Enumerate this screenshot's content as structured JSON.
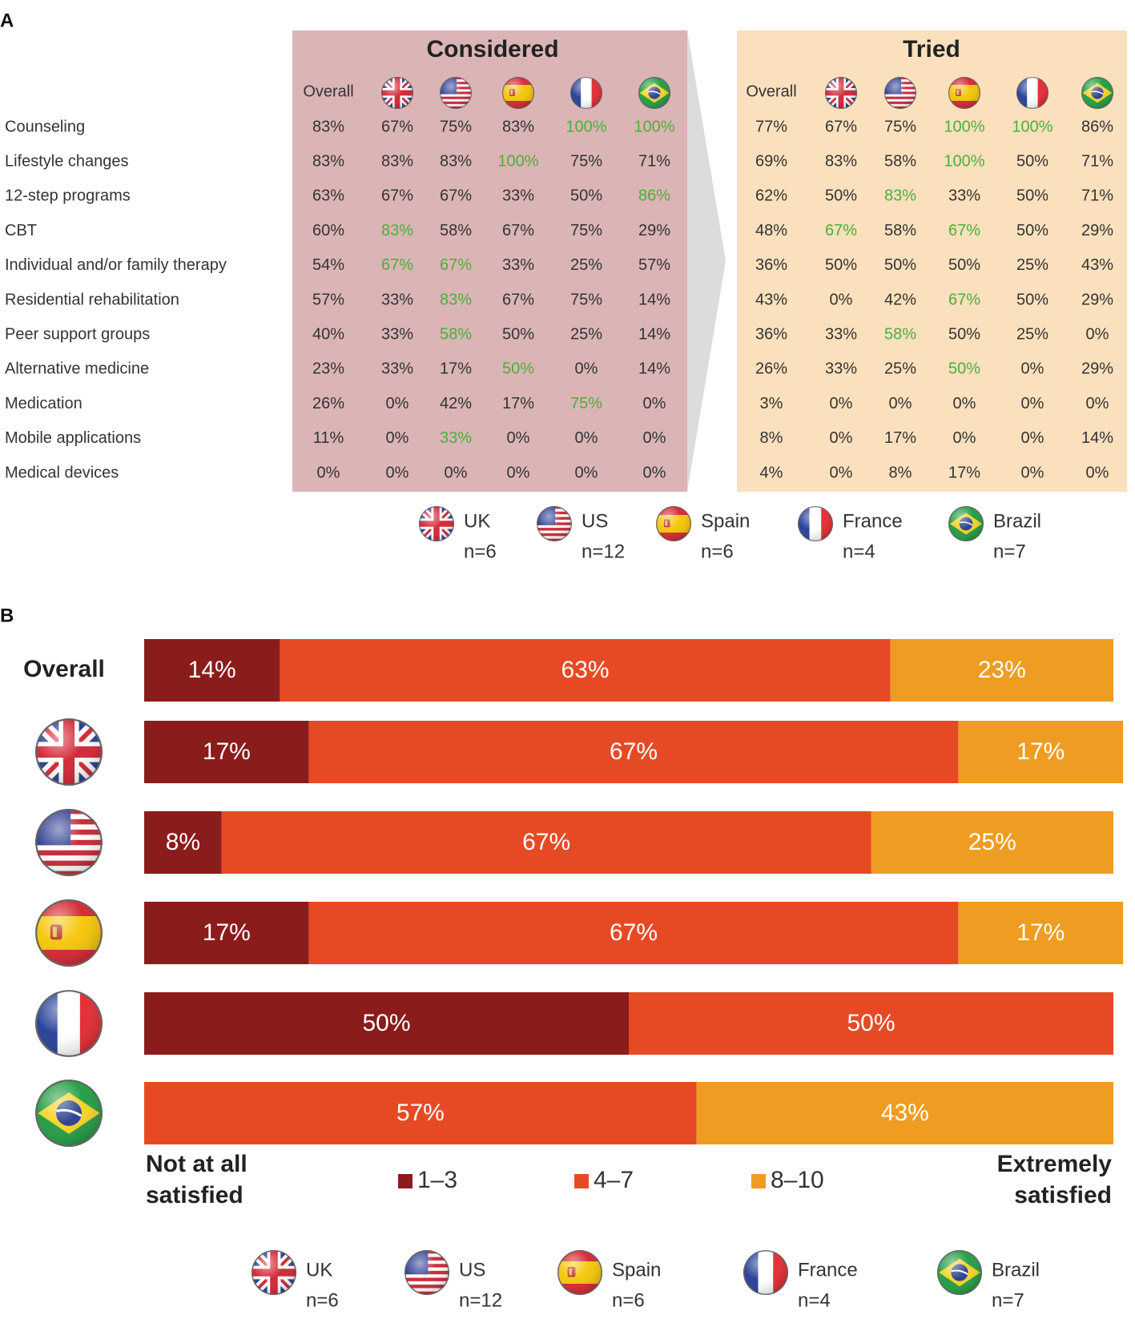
{
  "colors": {
    "considered_bg": "#dbb4b6",
    "tried_bg": "#fbe0bd",
    "arrow": "#dcdcdc",
    "highlight": "#4caf3a",
    "seg_low": "#8b1c1c",
    "seg_mid": "#e64a25",
    "seg_high": "#ee9d22",
    "text": "#333333"
  },
  "countries": [
    {
      "key": "uk",
      "name": "UK",
      "n": "n=6",
      "flag": "uk-flag-icon"
    },
    {
      "key": "us",
      "name": "US",
      "n": "n=12",
      "flag": "us-flag-icon"
    },
    {
      "key": "spain",
      "name": "Spain",
      "n": "n=6",
      "flag": "spain-flag-icon"
    },
    {
      "key": "france",
      "name": "France",
      "n": "n=4",
      "flag": "france-flag-icon"
    },
    {
      "key": "brazil",
      "name": "Brazil",
      "n": "n=7",
      "flag": "brazil-flag-icon"
    }
  ],
  "chart_data": [
    {
      "type": "table",
      "panel_label": "A",
      "column_header": "Overall",
      "rows": [
        "Counseling",
        "Lifestyle changes",
        "12-step programs",
        "CBT",
        "Individual and/or family therapy",
        "Residential rehabilitation",
        "Peer support groups",
        "Alternative medicine",
        "Medication",
        "Mobile applications",
        "Medical devices"
      ],
      "groups": [
        {
          "title": "Considered",
          "values": [
            [
              "83%",
              "67%",
              "75%",
              "83%",
              "100%",
              "100%"
            ],
            [
              "83%",
              "83%",
              "83%",
              "100%",
              "75%",
              "71%"
            ],
            [
              "63%",
              "67%",
              "67%",
              "33%",
              "50%",
              "86%"
            ],
            [
              "60%",
              "83%",
              "58%",
              "67%",
              "75%",
              "29%"
            ],
            [
              "54%",
              "67%",
              "67%",
              "33%",
              "25%",
              "57%"
            ],
            [
              "57%",
              "33%",
              "83%",
              "67%",
              "75%",
              "14%"
            ],
            [
              "40%",
              "33%",
              "58%",
              "50%",
              "25%",
              "14%"
            ],
            [
              "23%",
              "33%",
              "17%",
              "50%",
              "0%",
              "14%"
            ],
            [
              "26%",
              "0%",
              "42%",
              "17%",
              "75%",
              "0%"
            ],
            [
              "11%",
              "0%",
              "33%",
              "0%",
              "0%",
              "0%"
            ],
            [
              "0%",
              "0%",
              "0%",
              "0%",
              "0%",
              "0%"
            ]
          ],
          "highlighted": [
            [
              0,
              4
            ],
            [
              0,
              5
            ],
            [
              1,
              3
            ],
            [
              2,
              5
            ],
            [
              3,
              1
            ],
            [
              4,
              1
            ],
            [
              4,
              2
            ],
            [
              5,
              2
            ],
            [
              6,
              2
            ],
            [
              7,
              3
            ],
            [
              8,
              4
            ],
            [
              9,
              2
            ]
          ]
        },
        {
          "title": "Tried",
          "values": [
            [
              "77%",
              "67%",
              "75%",
              "100%",
              "100%",
              "86%"
            ],
            [
              "69%",
              "83%",
              "58%",
              "100%",
              "50%",
              "71%"
            ],
            [
              "62%",
              "50%",
              "83%",
              "33%",
              "50%",
              "71%"
            ],
            [
              "48%",
              "67%",
              "58%",
              "67%",
              "50%",
              "29%"
            ],
            [
              "36%",
              "50%",
              "50%",
              "50%",
              "25%",
              "43%"
            ],
            [
              "43%",
              "0%",
              "42%",
              "67%",
              "50%",
              "29%"
            ],
            [
              "36%",
              "33%",
              "58%",
              "50%",
              "25%",
              "0%"
            ],
            [
              "26%",
              "33%",
              "25%",
              "50%",
              "0%",
              "29%"
            ],
            [
              "3%",
              "0%",
              "0%",
              "0%",
              "0%",
              "0%"
            ],
            [
              "8%",
              "0%",
              "17%",
              "0%",
              "0%",
              "14%"
            ],
            [
              "4%",
              "0%",
              "8%",
              "17%",
              "0%",
              "0%"
            ]
          ],
          "highlighted": [
            [
              0,
              3
            ],
            [
              0,
              4
            ],
            [
              1,
              3
            ],
            [
              2,
              2
            ],
            [
              3,
              1
            ],
            [
              3,
              3
            ],
            [
              5,
              3
            ],
            [
              6,
              2
            ],
            [
              7,
              3
            ]
          ]
        }
      ]
    },
    {
      "type": "bar",
      "orientation": "horizontal",
      "stacked": true,
      "panel_label": "B",
      "categories": [
        "Overall",
        "uk",
        "us",
        "spain",
        "france",
        "brazil"
      ],
      "series": [
        {
          "name": "1–3",
          "values": [
            14,
            17,
            8,
            17,
            50,
            0
          ]
        },
        {
          "name": "4–7",
          "values": [
            63,
            67,
            67,
            67,
            50,
            57
          ]
        },
        {
          "name": "8–10",
          "values": [
            23,
            17,
            25,
            17,
            0,
            43
          ]
        }
      ],
      "xlim": [
        0,
        100
      ],
      "left_label": [
        "Not at all",
        "satisfied"
      ],
      "right_label": [
        "Extremely",
        "satisfied"
      ]
    }
  ]
}
